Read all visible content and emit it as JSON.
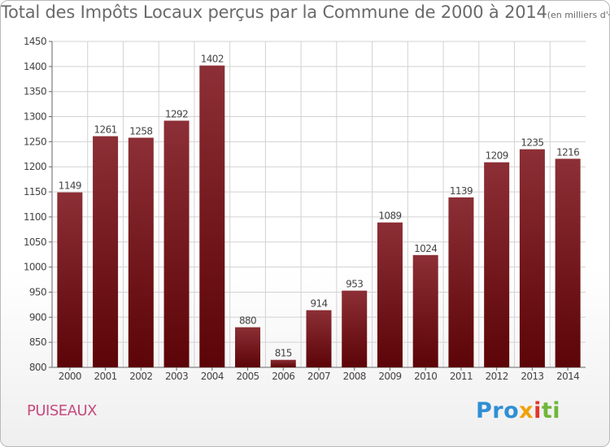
{
  "title": "Total des Impôts Locaux perçus par la Commune de 2000 à 2014",
  "subtitle": "(en milliers d'€)",
  "commune": "PUISEAUX",
  "logo": {
    "a": "Pro",
    "b": "x",
    "c": "i",
    "d": "ti"
  },
  "colors": {
    "bar_top": "#8c2f36",
    "bar_bottom": "#5c0407",
    "grid": "#d2d2d2",
    "text": "#444444"
  },
  "chart_data": {
    "type": "bar",
    "categories": [
      "2000",
      "2001",
      "2002",
      "2003",
      "2004",
      "2005",
      "2006",
      "2007",
      "2008",
      "2009",
      "2010",
      "2011",
      "2012",
      "2013",
      "2014"
    ],
    "values": [
      1149,
      1261,
      1258,
      1292,
      1402,
      880,
      815,
      914,
      953,
      1089,
      1024,
      1139,
      1209,
      1235,
      1216
    ],
    "yticks": [
      800,
      850,
      900,
      950,
      1000,
      1050,
      1100,
      1150,
      1200,
      1250,
      1300,
      1350,
      1400,
      1450
    ],
    "ylim": [
      800,
      1450
    ],
    "xlabel": "",
    "ylabel": "",
    "grid": true
  }
}
